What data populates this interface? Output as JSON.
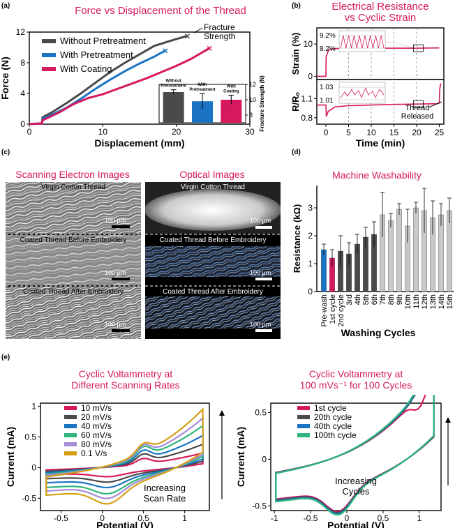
{
  "panels": {
    "a": {
      "label": "(a)",
      "title": "Force vs Displacement of the Thread"
    },
    "b": {
      "label": "(b)",
      "title_l1": "Electrical Resistance",
      "title_l2": "vs Cyclic Strain"
    },
    "c": {
      "label": "(c)",
      "sem_title": "Scanning Electron Images",
      "opt_title": "Optical Images"
    },
    "d": {
      "label": "(d)",
      "title": "Machine Washability"
    },
    "e": {
      "label": "(e)",
      "left_title_l1": "Cyclic Voltammetry at",
      "left_title_l2": "Different Scanning Rates",
      "right_title_l1": "Cyclic Voltammetry at",
      "right_title_l2": "100 mVs⁻¹ for 100 Cycles"
    }
  },
  "panel_c": {
    "sem_captions": [
      "Virgin Cotton Thread",
      "Coated Thread Before Embroidery",
      "Coated Thread After Embroidery"
    ],
    "opt_captions": [
      "Virgin Cotton Thread",
      "Coated Thread Before Embroidery",
      "Coated Thread After Embroidery"
    ],
    "scale": "100 µm"
  },
  "colors": {
    "gray": "#4a4a4a",
    "blue": "#1a74c2",
    "pink": "#d6185f",
    "light": "#c8c8c8"
  },
  "chart_data": [
    {
      "id": "a",
      "type": "line",
      "title": "Force vs Displacement of the Thread",
      "xlabel": "Displacement (mm)",
      "ylabel": "Force (N)",
      "xlim": [
        0,
        30
      ],
      "ylim": [
        0,
        12
      ],
      "xticks": [
        0,
        10,
        20,
        30
      ],
      "yticks": [
        0,
        4,
        8,
        12
      ],
      "series": [
        {
          "name": "Without Pretreatment",
          "color": "#4a4a4a",
          "x": [
            0,
            1.7,
            1.8,
            3,
            5,
            7,
            9,
            11,
            13,
            15,
            17,
            19,
            20,
            21.5
          ],
          "y": [
            0,
            0.1,
            0.9,
            1.5,
            2.7,
            4.0,
            5.4,
            6.8,
            8.0,
            9.1,
            10.2,
            10.8,
            11.1,
            11.5
          ]
        },
        {
          "name": "With Pretreatment",
          "color": "#1a74c2",
          "x": [
            0,
            1.7,
            1.8,
            3,
            5,
            7,
            9,
            11,
            13,
            15,
            17,
            18.5
          ],
          "y": [
            0,
            0.1,
            0.7,
            1.2,
            2.1,
            3.3,
            4.6,
            5.8,
            6.9,
            7.9,
            8.8,
            9.6
          ]
        },
        {
          "name": "With Coating",
          "color": "#d6185f",
          "x": [
            0,
            1.7,
            1.8,
            4,
            6,
            8,
            10,
            12,
            14,
            16,
            18,
            20,
            22,
            24.5
          ],
          "y": [
            0,
            0.1,
            0.5,
            1.5,
            2.6,
            3.4,
            3.9,
            4.6,
            5.3,
            6.0,
            6.8,
            7.6,
            8.5,
            9.9
          ]
        }
      ],
      "annotation": "Fracture\nStrength",
      "inset": {
        "type": "bar",
        "ylabel": "Fracture Strength (N)",
        "ylim": [
          7,
          12
        ],
        "yticks": [
          8,
          10,
          12
        ],
        "categories": [
          "Without Pretreatment",
          "With Pretreatment",
          "With Coating"
        ],
        "values": [
          11.0,
          9.8,
          10.0
        ],
        "errors": [
          0.3,
          1.0,
          0.6
        ]
      }
    },
    {
      "id": "b",
      "type": "line",
      "title": "Electrical Resistance vs Cyclic Strain",
      "xlabel": "Time (min)",
      "xlim": [
        -2,
        26
      ],
      "xticks": [
        0,
        5,
        10,
        15,
        20,
        25
      ],
      "subplots": [
        {
          "ylabel": "Strain (%)",
          "ylim": [
            -1,
            15
          ],
          "yticks": [
            0,
            10
          ],
          "inset_labels": [
            "9.2%",
            "8.2%"
          ]
        },
        {
          "ylabel": "R/Rₒ",
          "ylim": [
            0.7,
            1.4
          ],
          "yticks": [
            0.8,
            1.1
          ],
          "inset_labels": [
            "1.03",
            "1.01"
          ],
          "annotation": "Thread\nReleased"
        }
      ]
    },
    {
      "id": "d",
      "type": "bar",
      "title": "Machine Washability",
      "xlabel": "Washing Cycles",
      "ylabel": "Resistance (kΩ)",
      "ylim": [
        0,
        3.8
      ],
      "yticks": [
        0,
        1,
        2,
        3
      ],
      "categories": [
        "Pre-wash",
        "1st cycle",
        "2nd cycle",
        "3rd",
        "4th",
        "5th",
        "6th",
        "7th",
        "8th",
        "9th",
        "10th",
        "11th",
        "12th",
        "13th",
        "14th",
        "15th"
      ],
      "values": [
        1.5,
        1.2,
        1.45,
        1.35,
        1.7,
        1.95,
        2.05,
        2.75,
        2.55,
        2.95,
        2.35,
        3.0,
        2.9,
        2.65,
        2.75,
        2.9
      ],
      "errors": [
        0.2,
        0.3,
        0.55,
        0.4,
        0.35,
        0.35,
        0.45,
        0.8,
        0.25,
        0.2,
        0.6,
        0.2,
        0.8,
        0.6,
        0.4,
        0.45
      ]
    },
    {
      "id": "e1",
      "type": "line",
      "title": "Cyclic Voltammetry at Different Scanning Rates",
      "xlabel": "Potential (V)",
      "ylabel": "Current (mA)",
      "xlim": [
        -0.75,
        1.3
      ],
      "ylim": [
        -0.7,
        1.05
      ],
      "xticks": [
        -0.5,
        0,
        0.5,
        1
      ],
      "yticks": [
        -0.5,
        0,
        0.5,
        1
      ],
      "series": [
        {
          "name": "10 mV/s",
          "color": "#d6185f",
          "amp": 0.25
        },
        {
          "name": "20 mV/s",
          "color": "#4a4a4a",
          "amp": 0.4
        },
        {
          "name": "40 mV/s",
          "color": "#1a74c2",
          "amp": 0.55
        },
        {
          "name": "60 mV/s",
          "color": "#2eb67d",
          "amp": 0.72
        },
        {
          "name": "80 mV/s",
          "color": "#a58cd6",
          "amp": 0.85
        },
        {
          "name": "0.1 V/s",
          "color": "#d4a017",
          "amp": 1.0
        }
      ],
      "annotation": "Increasing\nScan Rate"
    },
    {
      "id": "e2",
      "type": "line",
      "title": "Cyclic Voltammetry at 100 mVs-1 for 100 Cycles",
      "xlabel": "Potential (V)",
      "ylabel": "Current (mA)",
      "xlim": [
        -1.05,
        1.3
      ],
      "ylim": [
        -0.55,
        0.6
      ],
      "xticks": [
        -1,
        -0.5,
        0,
        0.5,
        1
      ],
      "yticks": [
        -0.5,
        0,
        0.5
      ],
      "series": [
        {
          "name": "1st cycle",
          "color": "#d6185f"
        },
        {
          "name": "20th cycle",
          "color": "#4a4a4a"
        },
        {
          "name": "40th cycle",
          "color": "#1a74c2"
        },
        {
          "name": "100th cycle",
          "color": "#2eb67d"
        }
      ],
      "annotation": "Increasing\nCycles"
    }
  ]
}
